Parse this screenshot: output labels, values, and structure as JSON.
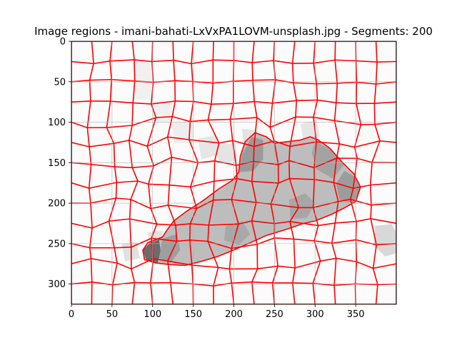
{
  "chart_data": {
    "type": "heatmap",
    "title": "Image regions - imani-bahati-LxVxPA1LOVM-unsplash.jpg - Segments: 200",
    "xlabel": "",
    "ylabel": "",
    "xlim": [
      0,
      400
    ],
    "ylim": [
      325,
      0
    ],
    "xticks": [
      0,
      50,
      100,
      150,
      200,
      250,
      300,
      350
    ],
    "yticks": [
      0,
      50,
      100,
      150,
      200,
      250,
      300
    ],
    "grid": true,
    "segment_count": 200,
    "segment_boundary_color": "#ff0000",
    "background_gray": "#fbfbfb",
    "highlighted_region": {
      "outline": [
        [
          88,
          258
        ],
        [
          94,
          249
        ],
        [
          104,
          245
        ],
        [
          112,
          242
        ],
        [
          118,
          233
        ],
        [
          126,
          222
        ],
        [
          142,
          210
        ],
        [
          162,
          197
        ],
        [
          182,
          182
        ],
        [
          198,
          172
        ],
        [
          206,
          162
        ],
        [
          208,
          142
        ],
        [
          214,
          124
        ],
        [
          226,
          113
        ],
        [
          240,
          118
        ],
        [
          250,
          126
        ],
        [
          266,
          124
        ],
        [
          282,
          122
        ],
        [
          294,
          118
        ],
        [
          304,
          122
        ],
        [
          318,
          132
        ],
        [
          334,
          150
        ],
        [
          348,
          164
        ],
        [
          356,
          180
        ],
        [
          350,
          198
        ],
        [
          336,
          206
        ],
        [
          320,
          214
        ],
        [
          300,
          222
        ],
        [
          286,
          225
        ],
        [
          266,
          232
        ],
        [
          240,
          240
        ],
        [
          218,
          250
        ],
        [
          200,
          258
        ],
        [
          180,
          266
        ],
        [
          160,
          272
        ],
        [
          140,
          277
        ],
        [
          122,
          276
        ],
        [
          104,
          274
        ],
        [
          90,
          270
        ]
      ],
      "fill": "#bdbdbd",
      "darker_patches": [
        {
          "points": [
            [
              88,
              258
            ],
            [
              97,
              249
            ],
            [
              108,
              245
            ],
            [
              110,
              260
            ],
            [
              106,
              274
            ],
            [
              92,
              270
            ]
          ],
          "fill": "#6b6b6b"
        },
        {
          "points": [
            [
              206,
              162
            ],
            [
              210,
              140
            ],
            [
              222,
              118
            ],
            [
              236,
              122
            ],
            [
              236,
              146
            ],
            [
              224,
              160
            ]
          ],
          "fill": "#9a9a9a"
        },
        {
          "points": [
            [
              300,
              124
            ],
            [
              320,
              134
            ],
            [
              336,
              152
            ],
            [
              322,
              170
            ],
            [
              302,
              158
            ],
            [
              296,
              138
            ]
          ],
          "fill": "#a3a3a3"
        },
        {
          "points": [
            [
              336,
              160
            ],
            [
              350,
              168
            ],
            [
              356,
              184
            ],
            [
              346,
              200
            ],
            [
              330,
              196
            ],
            [
              326,
              176
            ]
          ],
          "fill": "#9c9c9c"
        },
        {
          "points": [
            [
              268,
              196
            ],
            [
              288,
              188
            ],
            [
              300,
              200
            ],
            [
              290,
              218
            ],
            [
              270,
              220
            ]
          ],
          "fill": "#a6a6a6"
        },
        {
          "points": [
            [
              190,
              228
            ],
            [
              210,
              222
            ],
            [
              220,
              238
            ],
            [
              206,
              252
            ],
            [
              188,
              246
            ]
          ],
          "fill": "#a8a8a8"
        },
        {
          "points": [
            [
              112,
              244
            ],
            [
              130,
              238
            ],
            [
              134,
              258
            ],
            [
              122,
              274
            ],
            [
              108,
              268
            ]
          ],
          "fill": "#9e9e9e"
        }
      ]
    },
    "light_patches": [
      {
        "points": [
          [
            76,
            24
          ],
          [
            100,
            24
          ],
          [
            100,
            72
          ],
          [
            76,
            72
          ]
        ],
        "fill": "#f0f0f0"
      },
      {
        "points": [
          [
            100,
            74
          ],
          [
            124,
            74
          ],
          [
            124,
            100
          ],
          [
            100,
            100
          ]
        ],
        "fill": "#f0f0f0"
      },
      {
        "points": [
          [
            124,
            100
          ],
          [
            150,
            100
          ],
          [
            150,
            126
          ],
          [
            126,
            126
          ]
        ],
        "fill": "#eeeeee"
      },
      {
        "points": [
          [
            156,
            120
          ],
          [
            178,
            116
          ],
          [
            182,
            140
          ],
          [
            160,
            146
          ]
        ],
        "fill": "#e6e6e6"
      },
      {
        "points": [
          [
            210,
            108
          ],
          [
            228,
            110
          ],
          [
            232,
            124
          ],
          [
            212,
            128
          ]
        ],
        "fill": "#e3e3e3"
      },
      {
        "points": [
          [
            282,
            102
          ],
          [
            302,
            98
          ],
          [
            306,
            118
          ],
          [
            286,
            124
          ]
        ],
        "fill": "#e6e6e6"
      },
      {
        "points": [
          [
            178,
            128
          ],
          [
            202,
            126
          ],
          [
            204,
            148
          ],
          [
            182,
            150
          ]
        ],
        "fill": "#e4e4e4"
      },
      {
        "points": [
          [
            94,
            236
          ],
          [
            112,
            234
          ],
          [
            112,
            250
          ],
          [
            96,
            252
          ]
        ],
        "fill": "#e2e2e2"
      },
      {
        "points": [
          [
            374,
            228
          ],
          [
            394,
            226
          ],
          [
            400,
            236
          ],
          [
            400,
            262
          ],
          [
            386,
            266
          ],
          [
            372,
            252
          ]
        ],
        "fill": "#d8d8d8"
      },
      {
        "points": [
          [
            62,
            250
          ],
          [
            80,
            248
          ],
          [
            84,
            268
          ],
          [
            66,
            272
          ]
        ],
        "fill": "#e0e0e0"
      }
    ]
  }
}
